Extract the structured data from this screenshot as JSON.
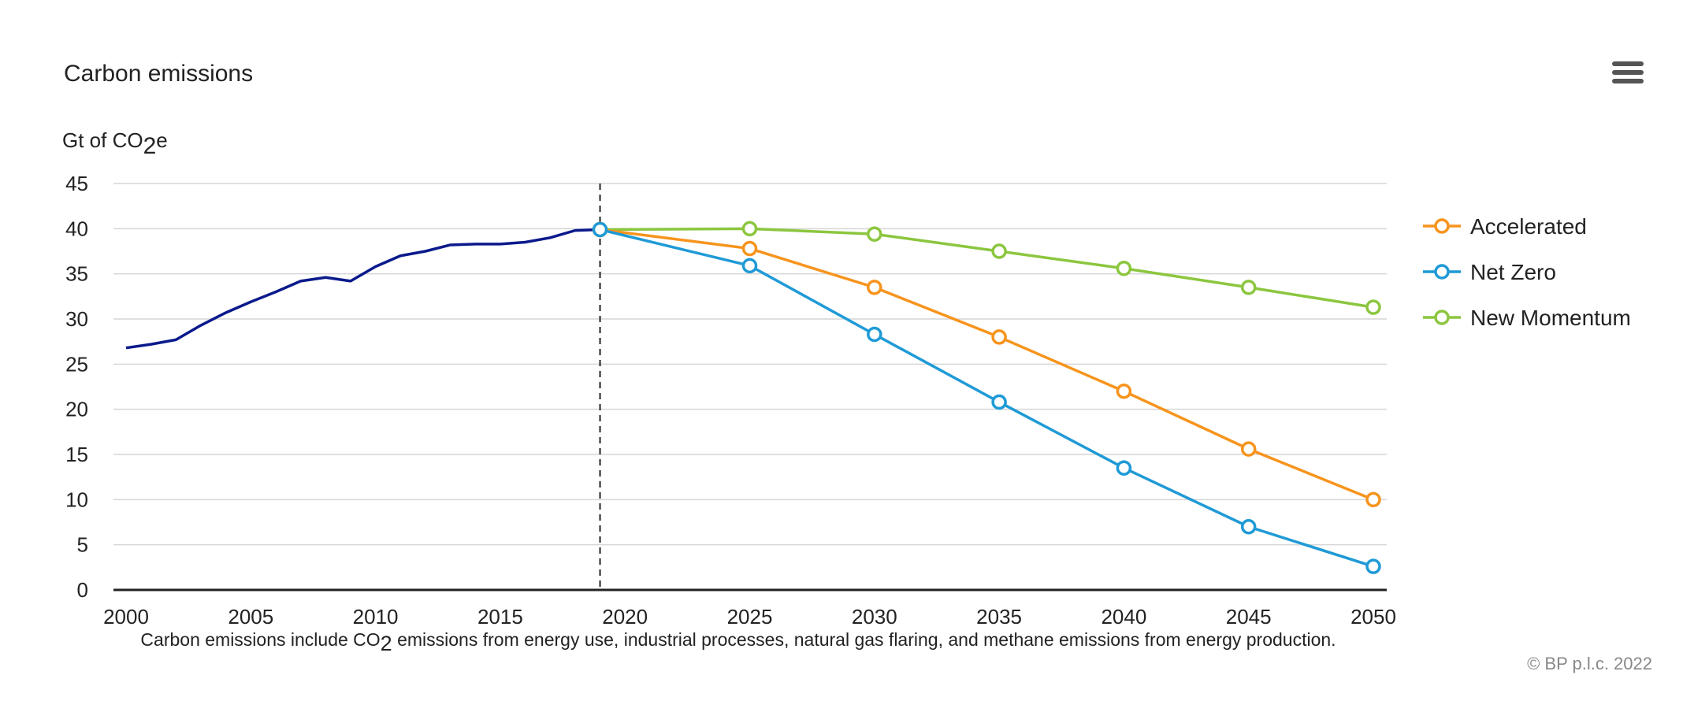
{
  "chart_data": {
    "type": "line",
    "title": "Carbon emissions",
    "ylabel_main": "Gt of CO",
    "ylabel_sub": "2",
    "ylabel_end": "e",
    "ylim": [
      0,
      45
    ],
    "yticks": [
      "0",
      "5",
      "10",
      "15",
      "20",
      "25",
      "30",
      "35",
      "40",
      "45"
    ],
    "xlim": [
      2000,
      2050
    ],
    "xticks": [
      "2000",
      "2005",
      "2010",
      "2015",
      "2020",
      "2025",
      "2030",
      "2035",
      "2040",
      "2045",
      "2050"
    ],
    "divider_year": 2019,
    "grid": true,
    "legend_position": "right",
    "history": {
      "color": "#0a1a8c",
      "x": [
        2000,
        2001,
        2002,
        2003,
        2004,
        2005,
        2006,
        2007,
        2008,
        2009,
        2010,
        2011,
        2012,
        2013,
        2014,
        2015,
        2016,
        2017,
        2018,
        2019
      ],
      "values": [
        26.8,
        27.2,
        27.7,
        29.3,
        30.7,
        31.9,
        33.0,
        34.2,
        34.6,
        34.2,
        35.8,
        37.0,
        37.5,
        38.2,
        38.3,
        38.3,
        38.5,
        39.0,
        39.8,
        39.9
      ]
    },
    "series": [
      {
        "name": "Accelerated",
        "color": "#f7941d",
        "x": [
          2019,
          2025,
          2030,
          2035,
          2040,
          2045,
          2050
        ],
        "values": [
          39.9,
          37.8,
          33.5,
          28.0,
          22.0,
          15.6,
          10.0
        ]
      },
      {
        "name": "Net Zero",
        "color": "#1f9ad6",
        "x": [
          2019,
          2025,
          2030,
          2035,
          2040,
          2045,
          2050
        ],
        "values": [
          39.9,
          35.9,
          28.3,
          20.8,
          13.5,
          7.0,
          2.6
        ]
      },
      {
        "name": "New Momentum",
        "color": "#8cc63f",
        "x": [
          2019,
          2025,
          2030,
          2035,
          2040,
          2045,
          2050
        ],
        "values": [
          39.9,
          40.0,
          39.4,
          37.5,
          35.6,
          33.5,
          31.3
        ]
      }
    ],
    "caption_main": "Carbon emissions include CO",
    "caption_sub": "2",
    "caption_end": " emissions from energy use, industrial processes, natural gas flaring, and methane emissions from energy production."
  },
  "credit": "© BP p.l.c. 2022",
  "icons": {
    "menu": "hamburger-menu-icon"
  }
}
